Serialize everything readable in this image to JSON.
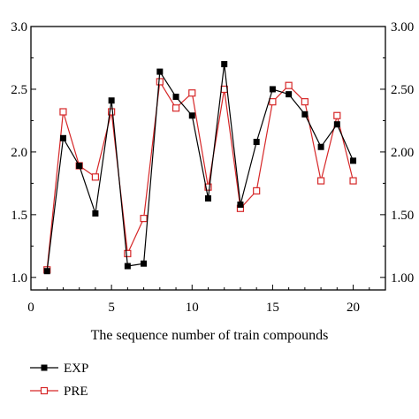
{
  "chart_data": {
    "type": "line",
    "title": "",
    "xlabel": "The sequence number of train compounds",
    "ylabel": "",
    "xlim": [
      0,
      22
    ],
    "ylim": [
      0.9,
      3.0
    ],
    "x_ticks": [
      0,
      5,
      10,
      15,
      20
    ],
    "y_ticks_left": [
      "1.0",
      "1.5",
      "2.0",
      "2.5",
      "3.0"
    ],
    "y_ticks_right": [
      "1.00",
      "1.50",
      "2.00",
      "2.50",
      "3.00"
    ],
    "y_tick_values": [
      1.0,
      1.5,
      2.0,
      2.5,
      3.0
    ],
    "grid": false,
    "legend_position": "bottom-left",
    "x": [
      1,
      2,
      3,
      4,
      5,
      6,
      7,
      8,
      9,
      10,
      11,
      12,
      13,
      14,
      15,
      16,
      17,
      18,
      19,
      20
    ],
    "series": [
      {
        "name": "EXP",
        "color": "#000000",
        "marker": "filled-square",
        "values": [
          1.05,
          2.11,
          1.89,
          1.51,
          2.41,
          1.09,
          1.11,
          2.64,
          2.44,
          2.29,
          1.63,
          2.7,
          1.58,
          2.08,
          2.5,
          2.46,
          2.3,
          2.04,
          2.22,
          1.93
        ]
      },
      {
        "name": "PRE",
        "color": "#d62728",
        "marker": "open-square",
        "values": [
          1.06,
          2.32,
          1.89,
          1.8,
          2.32,
          1.19,
          1.47,
          2.56,
          2.35,
          2.47,
          1.72,
          2.5,
          1.55,
          1.69,
          2.4,
          2.53,
          2.4,
          1.77,
          2.29,
          1.77
        ]
      }
    ]
  }
}
